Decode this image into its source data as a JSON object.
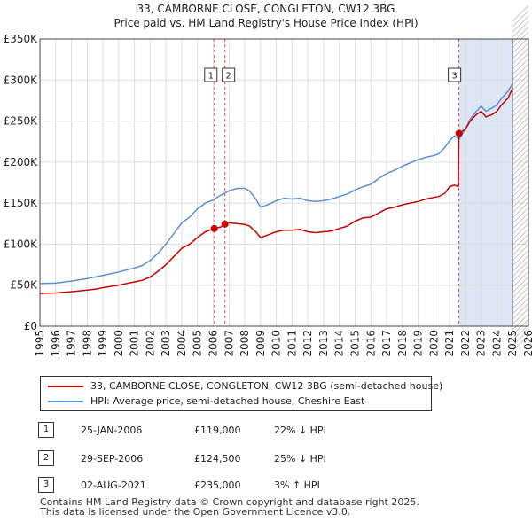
{
  "title_line1": "33, CAMBORNE CLOSE, CONGLETON, CW12 3BG",
  "title_line2": "Price paid vs. HM Land Registry's House Price Index (HPI)",
  "chart_data": {
    "type": "line",
    "x_range": [
      1995,
      2026
    ],
    "ylim": [
      0,
      350000
    ],
    "y_ticks": [
      0,
      50000,
      100000,
      150000,
      200000,
      250000,
      300000,
      350000
    ],
    "y_tick_labels": [
      "£0",
      "£50K",
      "£100K",
      "£150K",
      "£200K",
      "£250K",
      "£300K",
      "£350K"
    ],
    "x_ticks": [
      1995,
      1996,
      1997,
      1998,
      1999,
      2000,
      2001,
      2002,
      2003,
      2004,
      2005,
      2006,
      2007,
      2008,
      2009,
      2010,
      2011,
      2012,
      2013,
      2014,
      2015,
      2016,
      2017,
      2018,
      2019,
      2020,
      2021,
      2022,
      2023,
      2024,
      2025,
      2026
    ],
    "grid": true,
    "future_shade_from": 2025.0,
    "sale_shade": [
      2021.58,
      2025.0
    ],
    "series": [
      {
        "name": "33, CAMBORNE CLOSE, CONGLETON, CW12 3BG (semi-detached house)",
        "color": "#cc0000",
        "x": [
          1995.0,
          1996.0,
          1997.0,
          1998.0,
          1998.5,
          1999.0,
          2000.0,
          2001.0,
          2001.5,
          2002.0,
          2002.5,
          2003.0,
          2003.5,
          2004.0,
          2004.5,
          2005.0,
          2005.5,
          2006.07,
          2006.5,
          2006.74,
          2007.0,
          2007.5,
          2008.0,
          2008.3,
          2008.7,
          2009.0,
          2009.3,
          2009.7,
          2010.0,
          2010.5,
          2011.0,
          2011.5,
          2012.0,
          2012.5,
          2013.0,
          2013.5,
          2014.0,
          2014.5,
          2015.0,
          2015.5,
          2016.0,
          2016.5,
          2017.0,
          2017.5,
          2018.0,
          2018.5,
          2019.0,
          2019.5,
          2020.0,
          2020.3,
          2020.7,
          2021.0,
          2021.3,
          2021.55,
          2021.59,
          2022.0,
          2022.3,
          2022.7,
          2023.0,
          2023.3,
          2023.7,
          2024.0,
          2024.3,
          2024.7,
          2025.0
        ],
        "y": [
          40000,
          40500,
          42000,
          44000,
          45000,
          47000,
          50000,
          54000,
          56000,
          60000,
          67000,
          75000,
          85000,
          95000,
          100000,
          108000,
          115000,
          119000,
          121000,
          124500,
          126000,
          125000,
          124000,
          122000,
          115000,
          108000,
          110000,
          113000,
          115000,
          117000,
          117000,
          118000,
          115000,
          114000,
          115000,
          116000,
          119000,
          122000,
          128000,
          132000,
          133000,
          138000,
          143000,
          145000,
          148000,
          150000,
          152000,
          155000,
          157000,
          158000,
          162000,
          170000,
          172000,
          170000,
          235000,
          240000,
          250000,
          258000,
          262000,
          255000,
          258000,
          262000,
          270000,
          278000,
          290000
        ]
      },
      {
        "name": "HPI: Average price, semi-detached house, Cheshire East",
        "color": "#5b8fd4",
        "x": [
          1995.0,
          1996.0,
          1997.0,
          1998.0,
          1998.5,
          1999.0,
          2000.0,
          2001.0,
          2001.5,
          2002.0,
          2002.5,
          2003.0,
          2003.5,
          2004.0,
          2004.5,
          2005.0,
          2005.5,
          2006.0,
          2006.5,
          2007.0,
          2007.5,
          2008.0,
          2008.3,
          2008.7,
          2009.0,
          2009.3,
          2009.7,
          2010.0,
          2010.5,
          2011.0,
          2011.5,
          2012.0,
          2012.5,
          2013.0,
          2013.5,
          2014.0,
          2014.5,
          2015.0,
          2015.5,
          2016.0,
          2016.5,
          2017.0,
          2017.5,
          2018.0,
          2018.5,
          2019.0,
          2019.5,
          2020.0,
          2020.3,
          2020.7,
          2021.0,
          2021.3,
          2021.6,
          2022.0,
          2022.3,
          2022.7,
          2023.0,
          2023.3,
          2023.7,
          2024.0,
          2024.3,
          2024.7,
          2025.0
        ],
        "y": [
          52000,
          52500,
          55000,
          58000,
          60000,
          62000,
          66000,
          71000,
          74000,
          80000,
          89000,
          100000,
          113000,
          126000,
          133000,
          143000,
          150000,
          154000,
          160000,
          165000,
          168000,
          168000,
          165000,
          155000,
          145000,
          147000,
          150000,
          153000,
          156000,
          155000,
          156000,
          153000,
          152000,
          153000,
          155000,
          158000,
          161000,
          166000,
          170000,
          173000,
          180000,
          186000,
          190000,
          195000,
          199000,
          203000,
          206000,
          208000,
          210000,
          218000,
          226000,
          232000,
          228000,
          240000,
          252000,
          262000,
          268000,
          262000,
          266000,
          270000,
          278000,
          286000,
          296000
        ]
      }
    ],
    "sales": [
      {
        "label": "1",
        "date": "25-JAN-2006",
        "x": 2006.07,
        "price": 119000,
        "price_label": "£119,000",
        "hpi": "22% ↓ HPI"
      },
      {
        "label": "2",
        "date": "29-SEP-2006",
        "x": 2006.74,
        "price": 124500,
        "price_label": "£124,500",
        "hpi": "25% ↓ HPI"
      },
      {
        "label": "3",
        "date": "02-AUG-2021",
        "x": 2021.59,
        "price": 235000,
        "price_label": "£235,000",
        "hpi": "3% ↑ HPI"
      }
    ]
  },
  "footer": {
    "line1": "Contains HM Land Registry data © Crown copyright and database right 2025.",
    "line2": "This data is licensed under the Open Government Licence v3.0."
  },
  "colors": {
    "property": "#cc0000",
    "hpi": "#5b8fd4",
    "grid": "#dddddd",
    "shade": "#dce6f5"
  }
}
